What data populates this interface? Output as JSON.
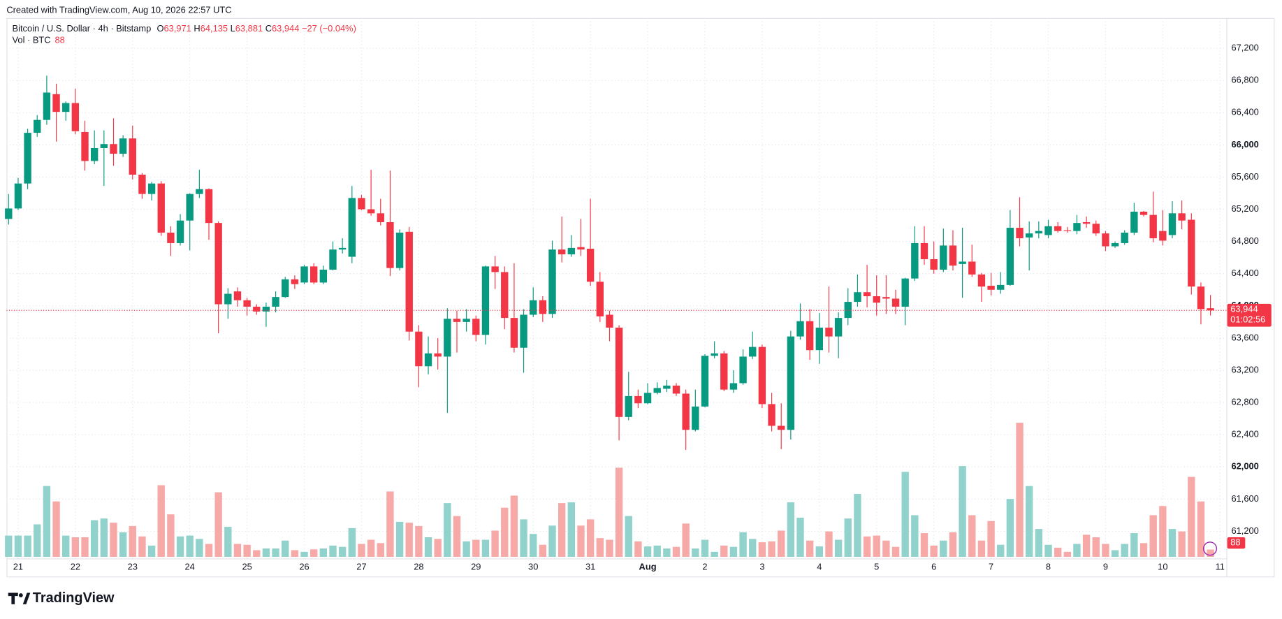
{
  "created": "Created with TradingView.com, Aug 10, 2026 22:57 UTC",
  "brand": "TradingView",
  "chart_data": {
    "type": "candlestick",
    "title": "Bitcoin / U.S. Dollar · 4h · Bitstamp",
    "legend_keys": [
      "O",
      "H",
      "L",
      "C"
    ],
    "legend_labels": [
      "63,971",
      "64,135",
      "63,881",
      "63,944"
    ],
    "change_label": "−27 (−0.04%)",
    "volume_title": "Vol · BTC",
    "volume_label": "88",
    "last_price_label": "63,944",
    "countdown": "01:02:56",
    "up_color": "#089981",
    "down_color": "#f23645",
    "volume_up_color": "#92d2cc",
    "volume_down_color": "#f7a9a7",
    "grid": true,
    "ylim": [
      61000,
      67500
    ],
    "yticks": [
      {
        "value": 61200,
        "label": "61,200"
      },
      {
        "value": 61600,
        "label": "61,600"
      },
      {
        "value": 62000,
        "label": "62,000"
      },
      {
        "value": 62400,
        "label": "62,400"
      },
      {
        "value": 62800,
        "label": "62,800"
      },
      {
        "value": 63200,
        "label": "63,200"
      },
      {
        "value": 63600,
        "label": "63,600"
      },
      {
        "value": 64000,
        "label": "64,000"
      },
      {
        "value": 64400,
        "label": "64,400"
      },
      {
        "value": 64800,
        "label": "64,800"
      },
      {
        "value": 65200,
        "label": "65,200"
      },
      {
        "value": 65600,
        "label": "65,600"
      },
      {
        "value": 66000,
        "label": "66,000"
      },
      {
        "value": 66400,
        "label": "66,400"
      },
      {
        "value": 66800,
        "label": "66,800"
      },
      {
        "value": 67200,
        "label": "67,200"
      }
    ],
    "xticks": [
      {
        "value": 1,
        "label": "21"
      },
      {
        "value": 7,
        "label": "22"
      },
      {
        "value": 13,
        "label": "23"
      },
      {
        "value": 19,
        "label": "24"
      },
      {
        "value": 25,
        "label": "25"
      },
      {
        "value": 31,
        "label": "26"
      },
      {
        "value": 37,
        "label": "27"
      },
      {
        "value": 43,
        "label": "28"
      },
      {
        "value": 49,
        "label": "29"
      },
      {
        "value": 55,
        "label": "30"
      },
      {
        "value": 61,
        "label": "31"
      },
      {
        "value": 67,
        "label": "Aug"
      },
      {
        "value": 73,
        "label": "2"
      },
      {
        "value": 79,
        "label": "3"
      },
      {
        "value": 85,
        "label": "4"
      },
      {
        "value": 91,
        "label": "5"
      },
      {
        "value": 97,
        "label": "6"
      },
      {
        "value": 103,
        "label": "7"
      },
      {
        "value": 109,
        "label": "8"
      },
      {
        "value": 115,
        "label": "9"
      },
      {
        "value": 121,
        "label": "10"
      },
      {
        "value": 127,
        "label": "11"
      }
    ],
    "open": [
      65080,
      65210,
      65520,
      66150,
      66310,
      66630,
      66410,
      66520,
      66160,
      65800,
      65960,
      66010,
      65890,
      66080,
      65630,
      65390,
      65520,
      64910,
      64780,
      65060,
      65390,
      65450,
      65030,
      64020,
      64180,
      64070,
      63990,
      63930,
      63990,
      64110,
      64330,
      64290,
      64490,
      64290,
      64450,
      64700,
      64610,
      65340,
      65200,
      65150,
      65040,
      64470,
      64920,
      63680,
      63250,
      63410,
      63370,
      63840,
      63800,
      63840,
      63640,
      64490,
      64420,
      63850,
      63480,
      63890,
      64070,
      63900,
      64700,
      64640,
      64730,
      64710,
      64300,
      63890,
      63730,
      62620,
      62880,
      62790,
      62920,
      62970,
      63010,
      62910,
      62460,
      62750,
      63380,
      63410,
      62960,
      63040,
      63370,
      63490,
      62780,
      62510,
      62460,
      63620,
      63810,
      63450,
      63730,
      63620,
      63850,
      64050,
      64170,
      64120,
      64110,
      64090,
      63990,
      64340,
      64780,
      64580,
      64450,
      64750,
      64520,
      64550,
      64390,
      64250,
      64200,
      64260,
      64970,
      64850,
      64900,
      64880,
      64990,
      64940,
      64930,
      65040,
      65020,
      64900,
      64740,
      64780,
      64910,
      65170,
      65130,
      64930,
      64880,
      65150,
      65070,
      64240,
      63971
    ],
    "high": [
      65390,
      65590,
      66200,
      66370,
      66860,
      66760,
      66540,
      66700,
      66300,
      66180,
      66180,
      66330,
      66120,
      66240,
      65650,
      65540,
      65550,
      64990,
      65140,
      65400,
      65690,
      65460,
      65050,
      64220,
      64230,
      64100,
      64020,
      64040,
      64180,
      64360,
      64380,
      64510,
      64530,
      64500,
      64800,
      64840,
      65490,
      65380,
      65690,
      65330,
      65680,
      64950,
      64980,
      63760,
      63620,
      63600,
      63970,
      63940,
      63960,
      63880,
      64500,
      64620,
      64490,
      64530,
      63960,
      64230,
      64120,
      64810,
      65110,
      64880,
      65080,
      65330,
      64420,
      63940,
      63760,
      63180,
      62960,
      63040,
      63050,
      63080,
      63040,
      62960,
      62960,
      63400,
      63560,
      63440,
      63200,
      63460,
      63680,
      63520,
      62920,
      62790,
      63690,
      64030,
      63960,
      63910,
      64240,
      63920,
      64220,
      64390,
      64510,
      64380,
      64380,
      64200,
      64350,
      64990,
      64990,
      64800,
      64960,
      64940,
      64970,
      64760,
      64410,
      64410,
      64420,
      65190,
      65350,
      65050,
      65050,
      65070,
      65040,
      64980,
      65130,
      65110,
      65060,
      64930,
      64800,
      64940,
      65280,
      65180,
      65420,
      65190,
      65300,
      65310,
      65150,
      64290,
      64135
    ],
    "low": [
      65010,
      65190,
      65450,
      66100,
      66250,
      66040,
      66300,
      66130,
      65680,
      65760,
      65490,
      65740,
      65850,
      65570,
      65330,
      65310,
      64870,
      64620,
      64750,
      64690,
      65340,
      64820,
      63660,
      63840,
      63990,
      63880,
      63890,
      63740,
      63920,
      64100,
      64210,
      64270,
      64270,
      64270,
      64440,
      64650,
      64530,
      65190,
      65120,
      65000,
      64370,
      64440,
      63570,
      62990,
      63150,
      63210,
      62670,
      63420,
      63680,
      63560,
      63520,
      64210,
      63710,
      63420,
      63170,
      63860,
      63800,
      63850,
      64540,
      64610,
      64620,
      64250,
      63800,
      63560,
      62330,
      62580,
      62730,
      62780,
      62900,
      62930,
      62880,
      62210,
      62440,
      62740,
      63350,
      62940,
      62920,
      63020,
      63340,
      62730,
      62440,
      62220,
      62340,
      63580,
      63330,
      63280,
      63420,
      63350,
      63760,
      63990,
      63980,
      63880,
      63900,
      63900,
      63760,
      64310,
      64510,
      64400,
      64420,
      64440,
      64100,
      64360,
      64050,
      64130,
      64150,
      64250,
      64740,
      64440,
      64840,
      64840,
      64910,
      64910,
      64890,
      64970,
      64870,
      64680,
      64720,
      64760,
      64880,
      65110,
      64790,
      64750,
      64840,
      64950,
      64140,
      63770,
      63881
    ],
    "close": [
      65210,
      65520,
      66150,
      66310,
      66650,
      66410,
      66520,
      66170,
      65800,
      65960,
      66010,
      65890,
      66080,
      65630,
      65390,
      65520,
      64910,
      64780,
      65060,
      65390,
      65450,
      65030,
      64020,
      64150,
      64070,
      63990,
      63930,
      63990,
      64110,
      64330,
      64270,
      64490,
      64290,
      64450,
      64700,
      64720,
      65340,
      65200,
      65150,
      65040,
      64470,
      64910,
      63680,
      63250,
      63410,
      63370,
      63840,
      63800,
      63840,
      63640,
      64490,
      64420,
      63850,
      63480,
      63890,
      64070,
      63900,
      64700,
      64640,
      64720,
      64700,
      64300,
      63870,
      63730,
      62620,
      62880,
      62790,
      62920,
      62980,
      63010,
      62910,
      62460,
      62750,
      63380,
      63410,
      62960,
      63040,
      63370,
      63490,
      62780,
      62510,
      62460,
      63620,
      63810,
      63450,
      63730,
      63620,
      63850,
      64050,
      64170,
      64120,
      64040,
      64090,
      63990,
      64340,
      64780,
      64580,
      64450,
      64750,
      64500,
      64550,
      64390,
      64240,
      64200,
      64260,
      64970,
      64840,
      64900,
      64930,
      64990,
      64930,
      64930,
      65030,
      65020,
      64900,
      64740,
      64780,
      64910,
      65170,
      65130,
      64840,
      64810,
      65150,
      65060,
      64240,
      63960,
      63944
    ],
    "volume": [
      255,
      255,
      255,
      390,
      850,
      665,
      255,
      235,
      235,
      440,
      460,
      410,
      295,
      370,
      245,
      135,
      860,
      510,
      245,
      255,
      215,
      155,
      775,
      360,
      155,
      145,
      80,
      100,
      100,
      195,
      80,
      60,
      90,
      100,
      135,
      120,
      345,
      155,
      205,
      165,
      785,
      420,
      410,
      370,
      235,
      215,
      645,
      490,
      185,
      205,
      205,
      315,
      590,
      735,
      450,
      275,
      145,
      375,
      645,
      655,
      375,
      450,
      225,
      205,
      1070,
      490,
      185,
      125,
      135,
      100,
      120,
      400,
      100,
      205,
      60,
      135,
      120,
      295,
      215,
      175,
      185,
      315,
      655,
      470,
      195,
      125,
      305,
      205,
      460,
      755,
      245,
      255,
      195,
      120,
      1020,
      500,
      285,
      135,
      195,
      295,
      1090,
      500,
      195,
      430,
      145,
      695,
      1610,
      850,
      335,
      145,
      110,
      60,
      155,
      265,
      235,
      155,
      80,
      155,
      285,
      165,
      500,
      610,
      335,
      305,
      960,
      665,
      88
    ]
  }
}
